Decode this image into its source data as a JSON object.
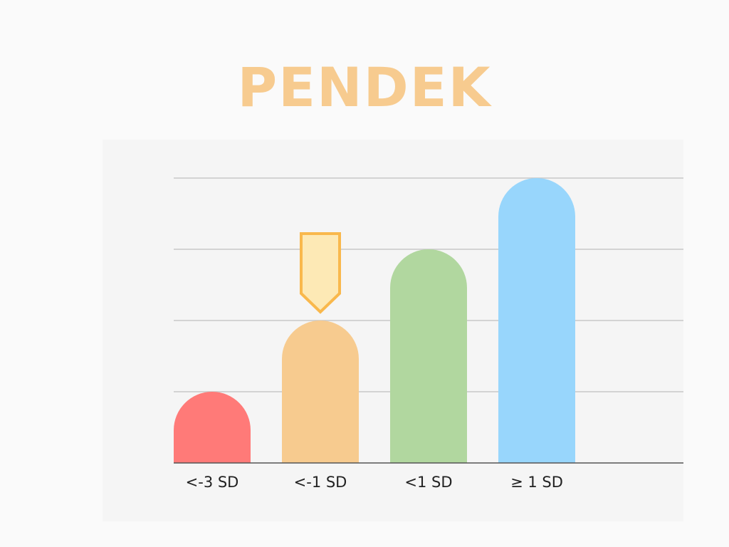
{
  "chart_data": {
    "type": "bar",
    "title": "PENDEK",
    "categories": [
      "<-3 SD",
      "<-1 SD",
      "<1 SD",
      "≥ 1 SD"
    ],
    "values": [
      1,
      2,
      3,
      4
    ],
    "ylim": [
      0,
      4
    ],
    "grid": true,
    "bar_colors": [
      "#ff7a78",
      "#f7cb8f",
      "#b1d79f",
      "#98d6fc"
    ],
    "highlight": {
      "category": "<-1 SD",
      "marker": "down-arrow",
      "fill": "#fde9b5",
      "stroke": "#f9b84c"
    }
  },
  "colors": {
    "title": "#f7cb8f",
    "grid": "#c8c8c8",
    "axis": "#555555",
    "panel": "#f5f5f5",
    "background": "#fafafa"
  }
}
